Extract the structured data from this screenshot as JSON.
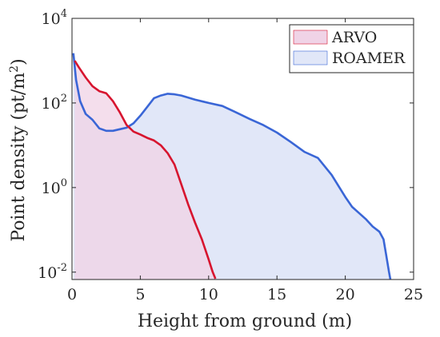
{
  "chart_data": {
    "type": "area",
    "xlabel": "Height from ground (m)",
    "ylabel": "Point density (pt/m",
    "ylabel_sup": "2",
    "ylabel_close": ")",
    "y_scale": "log",
    "xlim": [
      0,
      25
    ],
    "ylim": [
      0.0067,
      10000
    ],
    "x_ticks": [
      0,
      5,
      10,
      15,
      20,
      25
    ],
    "x_tick_labels": [
      "0",
      "5",
      "10",
      "15",
      "20",
      "25"
    ],
    "y_ticks": [
      0.01,
      1,
      100,
      10000
    ],
    "y_tick_labels": [
      {
        "base": "10",
        "exp": "-2"
      },
      {
        "base": "10",
        "exp": "0"
      },
      {
        "base": "10",
        "exp": "2"
      },
      {
        "base": "10",
        "exp": "4"
      }
    ],
    "legend_position": "top-right",
    "grid": false,
    "series": [
      {
        "name": "ARVO",
        "line_color": "#d7152f",
        "fill_color": "#f0d3e6",
        "x": [
          0.2,
          0.5,
          1,
          1.5,
          2,
          2.5,
          3,
          3.5,
          4,
          4.5,
          5,
          5.5,
          6,
          6.5,
          7,
          7.5,
          8,
          8.5,
          9,
          9.5,
          10,
          10.3,
          10.5
        ],
        "y": [
          1000,
          700,
          400,
          250,
          190,
          170,
          110,
          60,
          30,
          21,
          18,
          15,
          13,
          10,
          6.5,
          3.5,
          1.2,
          0.4,
          0.15,
          0.06,
          0.02,
          0.01,
          0.007
        ]
      },
      {
        "name": "ROAMER",
        "line_color": "#3a66d6",
        "fill_color": "#e1e7f8",
        "x": [
          0.1,
          0.3,
          0.6,
          1,
          1.5,
          2,
          2.5,
          3,
          3.5,
          4,
          4.5,
          5,
          5.5,
          6,
          6.5,
          7,
          7.5,
          8,
          9,
          10,
          11,
          12,
          13,
          14,
          15,
          16,
          17,
          18,
          19,
          20,
          20.5,
          21,
          21.5,
          22,
          22.5,
          22.8,
          23,
          23.2,
          23.3
        ],
        "y": [
          1500,
          350,
          110,
          55,
          40,
          25,
          22,
          22,
          24,
          26,
          33,
          50,
          80,
          130,
          150,
          165,
          160,
          150,
          120,
          100,
          85,
          60,
          42,
          30,
          20,
          12,
          7,
          5,
          2,
          0.6,
          0.35,
          0.25,
          0.18,
          0.12,
          0.09,
          0.06,
          0.025,
          0.01,
          0.0067
        ]
      }
    ]
  }
}
